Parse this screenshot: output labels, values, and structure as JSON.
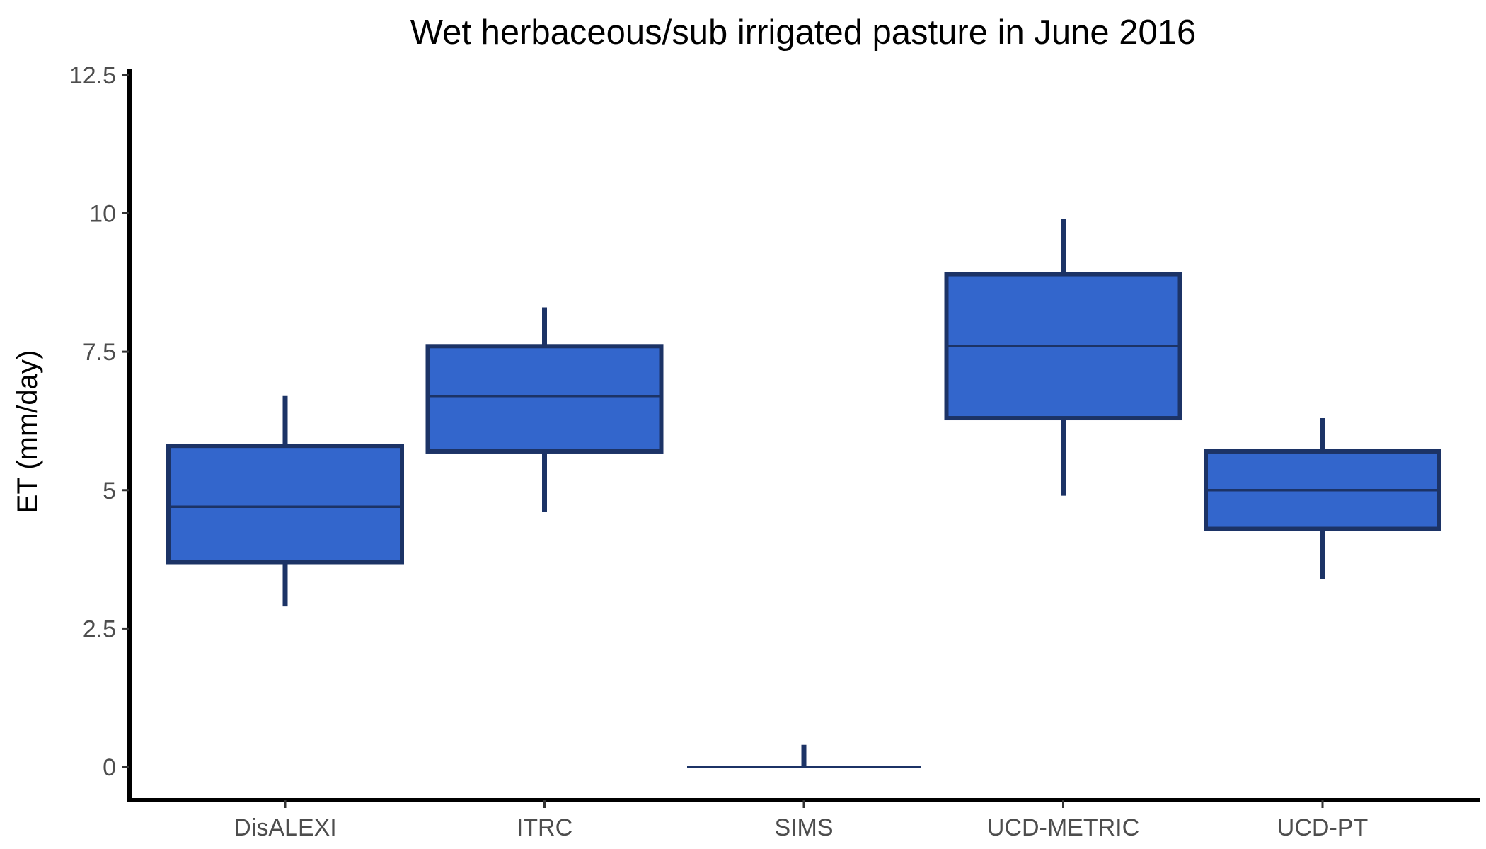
{
  "chart_data": {
    "type": "boxplot",
    "title": "Wet herbaceous/sub irrigated pasture in June 2016",
    "xlabel": "",
    "ylabel": "ET (mm/day)",
    "ylim": [
      -0.6,
      12.6
    ],
    "yticks": [
      0,
      2.5,
      5,
      7.5,
      10,
      12.5
    ],
    "ytick_labels": [
      "0",
      "2.5",
      "5",
      "7.5",
      "10",
      "12.5"
    ],
    "grid": false,
    "legend": "none",
    "box_fill": "#3366cc",
    "box_stroke": "#1c3366",
    "categories": [
      "DisALEXI",
      "ITRC",
      "SIMS",
      "UCD-METRIC",
      "UCD-PT"
    ],
    "boxes": [
      {
        "category": "DisALEXI",
        "whisker_low": 2.9,
        "q1": 3.7,
        "median": 4.7,
        "q3": 5.8,
        "whisker_high": 6.7
      },
      {
        "category": "ITRC",
        "whisker_low": 4.6,
        "q1": 5.7,
        "median": 6.7,
        "q3": 7.6,
        "whisker_high": 8.3
      },
      {
        "category": "SIMS",
        "whisker_low": 0,
        "q1": 0,
        "median": 0,
        "q3": 0,
        "whisker_high": 0.4
      },
      {
        "category": "UCD-METRIC",
        "whisker_low": 4.9,
        "q1": 6.3,
        "median": 7.6,
        "q3": 8.9,
        "whisker_high": 9.9
      },
      {
        "category": "UCD-PT",
        "whisker_low": 3.4,
        "q1": 4.3,
        "median": 5.0,
        "q3": 5.7,
        "whisker_high": 6.3
      }
    ]
  }
}
